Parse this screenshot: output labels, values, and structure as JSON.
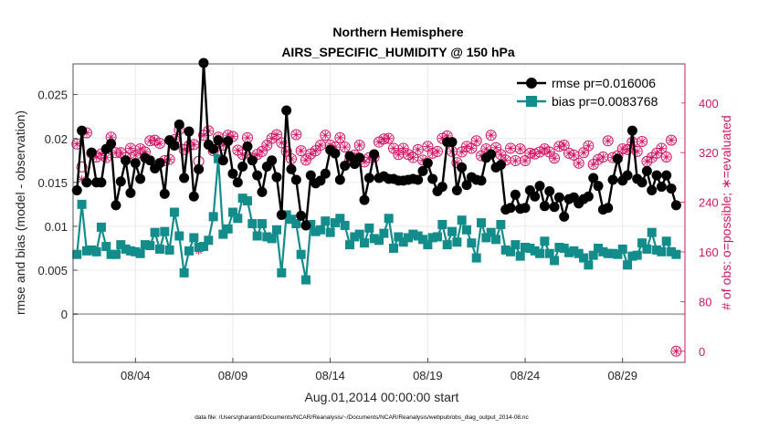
{
  "chart_data": {
    "type": "line",
    "title": "Northern Hemisphere",
    "subtitle": "AIRS_SPECIFIC_HUMIDITY @ 150 hPa",
    "xlabel": "Aug.01,2014 00:00:00 start",
    "ylabel": "rmse and bias (model - observation)",
    "y2label": "# of obs: o=possible; ∗=evaluated",
    "footnote": "data file: /Users/gharamti/Documents/NCAR/Reanalysis/~/Documents/NCAR/Reanalysis/webpub/obs_diag_output_2014-08.nc",
    "x_tick_labels": [
      "08/04",
      "08/09",
      "08/14",
      "08/19",
      "08/24",
      "08/29"
    ],
    "x_tick_days": [
      4,
      9,
      14,
      19,
      24,
      29
    ],
    "xlim": [
      0.8,
      32.2
    ],
    "ylim": [
      -0.0055,
      0.0285
    ],
    "y_ticks": [
      0,
      0.005,
      0.01,
      0.015,
      0.02,
      0.025
    ],
    "y_tick_labels": [
      "0",
      "0.005",
      "0.01",
      "0.015",
      "0.02",
      "0.025"
    ],
    "y2lim": [
      -18,
      463
    ],
    "y2_ticks": [
      0,
      80,
      160,
      240,
      320,
      400
    ],
    "y2_tick_labels": [
      "0",
      "80",
      "160",
      "240",
      "320",
      "400"
    ],
    "grid": true,
    "legend_position": "top-right",
    "x_days": [
      1,
      1.25,
      1.5,
      1.75,
      2,
      2.25,
      2.5,
      2.75,
      3,
      3.25,
      3.5,
      3.75,
      4,
      4.25,
      4.5,
      4.75,
      5,
      5.25,
      5.5,
      5.75,
      6,
      6.25,
      6.5,
      6.75,
      7,
      7.25,
      7.5,
      7.75,
      8,
      8.25,
      8.5,
      8.75,
      9,
      9.25,
      9.5,
      9.75,
      10,
      10.25,
      10.5,
      10.75,
      11,
      11.25,
      11.5,
      11.75,
      12,
      12.25,
      12.5,
      12.75,
      13,
      13.25,
      13.5,
      13.75,
      14,
      14.25,
      14.5,
      14.75,
      15,
      15.25,
      15.5,
      15.75,
      16,
      16.25,
      16.5,
      16.75,
      17,
      17.25,
      17.5,
      17.75,
      18,
      18.25,
      18.5,
      18.75,
      19,
      19.25,
      19.5,
      19.75,
      20,
      20.25,
      20.5,
      20.75,
      21,
      21.25,
      21.5,
      21.75,
      22,
      22.25,
      22.5,
      22.75,
      23,
      23.25,
      23.5,
      23.75,
      24,
      24.25,
      24.5,
      24.75,
      25,
      25.25,
      25.5,
      25.75,
      26,
      26.25,
      26.5,
      26.75,
      27,
      27.25,
      27.5,
      27.75,
      28,
      28.25,
      28.5,
      28.75,
      29,
      29.25,
      29.5,
      29.75,
      30,
      30.25,
      30.5,
      30.75,
      31,
      31.25,
      31.5,
      31.75
    ],
    "series": [
      {
        "name": "rmse pr=0.016006",
        "color": "#000000",
        "values": [
          0.0141,
          0.0209,
          0.015,
          0.0184,
          0.015,
          0.015,
          0.0188,
          0.0194,
          0.0124,
          0.0151,
          0.0175,
          0.0138,
          0.0172,
          0.0154,
          0.0178,
          0.0175,
          0.0166,
          0.0172,
          0.0137,
          0.0198,
          0.0192,
          0.0216,
          0.0155,
          0.0208,
          0.0134,
          0.0165,
          0.0286,
          0.0193,
          0.0188,
          0.0198,
          0.0175,
          0.0197,
          0.016,
          0.015,
          0.0168,
          0.0191,
          0.0175,
          0.0158,
          0.0139,
          0.0168,
          0.0175,
          0.0156,
          0.0113,
          0.0232,
          0.0165,
          0.0153,
          0.0112,
          0.0101,
          0.0158,
          0.0149,
          0.0152,
          0.016,
          0.0187,
          0.0183,
          0.0153,
          0.0169,
          0.018,
          0.0171,
          0.0178,
          0.013,
          0.0155,
          0.0182,
          0.0155,
          0.0157,
          0.0154,
          0.0154,
          0.0152,
          0.0152,
          0.0153,
          0.0154,
          0.0153,
          0.0163,
          0.0172,
          0.0154,
          0.014,
          0.0145,
          0.0196,
          0.0196,
          0.0141,
          0.0167,
          0.0147,
          0.0156,
          0.0153,
          0.0152,
          0.0178,
          0.0182,
          0.0167,
          0.017,
          0.0119,
          0.0121,
          0.0136,
          0.012,
          0.0121,
          0.0141,
          0.0134,
          0.0146,
          0.0123,
          0.014,
          0.0122,
          0.0133,
          0.0111,
          0.0131,
          0.0133,
          0.0126,
          0.0131,
          0.0134,
          0.0155,
          0.0146,
          0.0119,
          0.0121,
          0.0153,
          0.0177,
          0.0152,
          0.0158,
          0.0209,
          0.0154,
          0.015,
          0.0163,
          0.0141,
          0.0158,
          0.0145,
          0.0158,
          0.0143,
          0.0124
        ]
      },
      {
        "name": "bias pr=0.0083768",
        "color": "#138d8b",
        "values": [
          0.0068,
          0.0125,
          0.0072,
          0.0073,
          0.0071,
          0.0099,
          0.0077,
          0.0068,
          0.0068,
          0.0079,
          0.0074,
          0.0072,
          0.0071,
          0.0069,
          0.0079,
          0.0078,
          0.0093,
          0.0074,
          0.0094,
          0.0073,
          0.0116,
          0.0089,
          0.0047,
          0.0072,
          0.0087,
          0.0076,
          0.0077,
          0.0084,
          0.0111,
          0.0177,
          0.0091,
          0.0097,
          0.0116,
          0.0109,
          0.0132,
          0.0129,
          0.0103,
          0.0089,
          0.0103,
          0.0088,
          0.0086,
          0.0096,
          0.0047,
          0.0113,
          0.0108,
          0.0103,
          0.0068,
          0.0039,
          0.0102,
          0.0094,
          0.0096,
          0.0106,
          0.0093,
          0.0104,
          0.0109,
          0.0101,
          0.0079,
          0.0088,
          0.0091,
          0.0081,
          0.0098,
          0.0086,
          0.0084,
          0.0092,
          0.0109,
          0.0075,
          0.0088,
          0.0082,
          0.0087,
          0.0091,
          0.0089,
          0.0085,
          0.0079,
          0.0087,
          0.0088,
          0.0102,
          0.0079,
          0.0094,
          0.0082,
          0.0107,
          0.0096,
          0.0081,
          0.0064,
          0.0104,
          0.0087,
          0.0093,
          0.0085,
          0.0102,
          0.0073,
          0.0071,
          0.0079,
          0.0066,
          0.0076,
          0.0075,
          0.0072,
          0.0069,
          0.0083,
          0.0069,
          0.0061,
          0.0076,
          0.0075,
          0.007,
          0.0072,
          0.0069,
          0.0064,
          0.0056,
          0.0067,
          0.0075,
          0.0071,
          0.0069,
          0.0069,
          0.0068,
          0.0074,
          0.0056,
          0.0066,
          0.0067,
          0.0081,
          0.0074,
          0.0093,
          0.0073,
          0.0071,
          0.0083,
          0.0071,
          0.0068
        ]
      },
      {
        "name": "# of obs possible",
        "color": "#d11566",
        "values": [
          334,
          297,
          352,
          319,
          313,
          318,
          312,
          345,
          320,
          320,
          312,
          327,
          316,
          326,
          321,
          339,
          340,
          335,
          307,
          309,
          341,
          357,
          325,
          331,
          333,
          306,
          348,
          355,
          323,
          345,
          332,
          348,
          346,
          324,
          317,
          344,
          311,
          317,
          322,
          332,
          343,
          349,
          336,
          322,
          310,
          349,
          323,
          308,
          318,
          323,
          332,
          348,
          332,
          329,
          344,
          329,
          307,
          316,
          332,
          305,
          312,
          313,
          337,
          342,
          343,
          327,
          317,
          327,
          317,
          312,
          325,
          308,
          330,
          319,
          322,
          343,
          347,
          322,
          304,
          321,
          330,
          327,
          339,
          315,
          326,
          348,
          328,
          317,
          308,
          327,
          307,
          326,
          307,
          319,
          318,
          321,
          326,
          321,
          311,
          330,
          332,
          319,
          316,
          303,
          320,
          331,
          301,
          309,
          313,
          339,
          312,
          315,
          326,
          325,
          337,
          322,
          338,
          306,
          312,
          319,
          327,
          313,
          340,
          0
        ]
      },
      {
        "name": "# of obs evaluated",
        "color": "#d11566",
        "values": [
          334,
          277,
          352,
          319,
          313,
          318,
          312,
          345,
          320,
          320,
          312,
          327,
          316,
          326,
          321,
          339,
          340,
          335,
          307,
          309,
          341,
          357,
          325,
          331,
          333,
          162,
          348,
          355,
          323,
          345,
          332,
          348,
          346,
          324,
          317,
          344,
          311,
          317,
          322,
          332,
          343,
          349,
          336,
          322,
          310,
          349,
          323,
          308,
          318,
          323,
          332,
          348,
          332,
          329,
          344,
          329,
          307,
          316,
          332,
          305,
          312,
          313,
          337,
          342,
          343,
          327,
          317,
          327,
          317,
          312,
          325,
          308,
          330,
          319,
          322,
          343,
          347,
          322,
          304,
          321,
          330,
          327,
          339,
          315,
          326,
          348,
          328,
          317,
          308,
          327,
          307,
          326,
          307,
          319,
          318,
          321,
          326,
          321,
          311,
          330,
          332,
          319,
          316,
          303,
          320,
          331,
          301,
          309,
          313,
          339,
          312,
          315,
          326,
          325,
          337,
          322,
          338,
          306,
          312,
          319,
          327,
          313,
          340,
          0
        ]
      }
    ]
  }
}
